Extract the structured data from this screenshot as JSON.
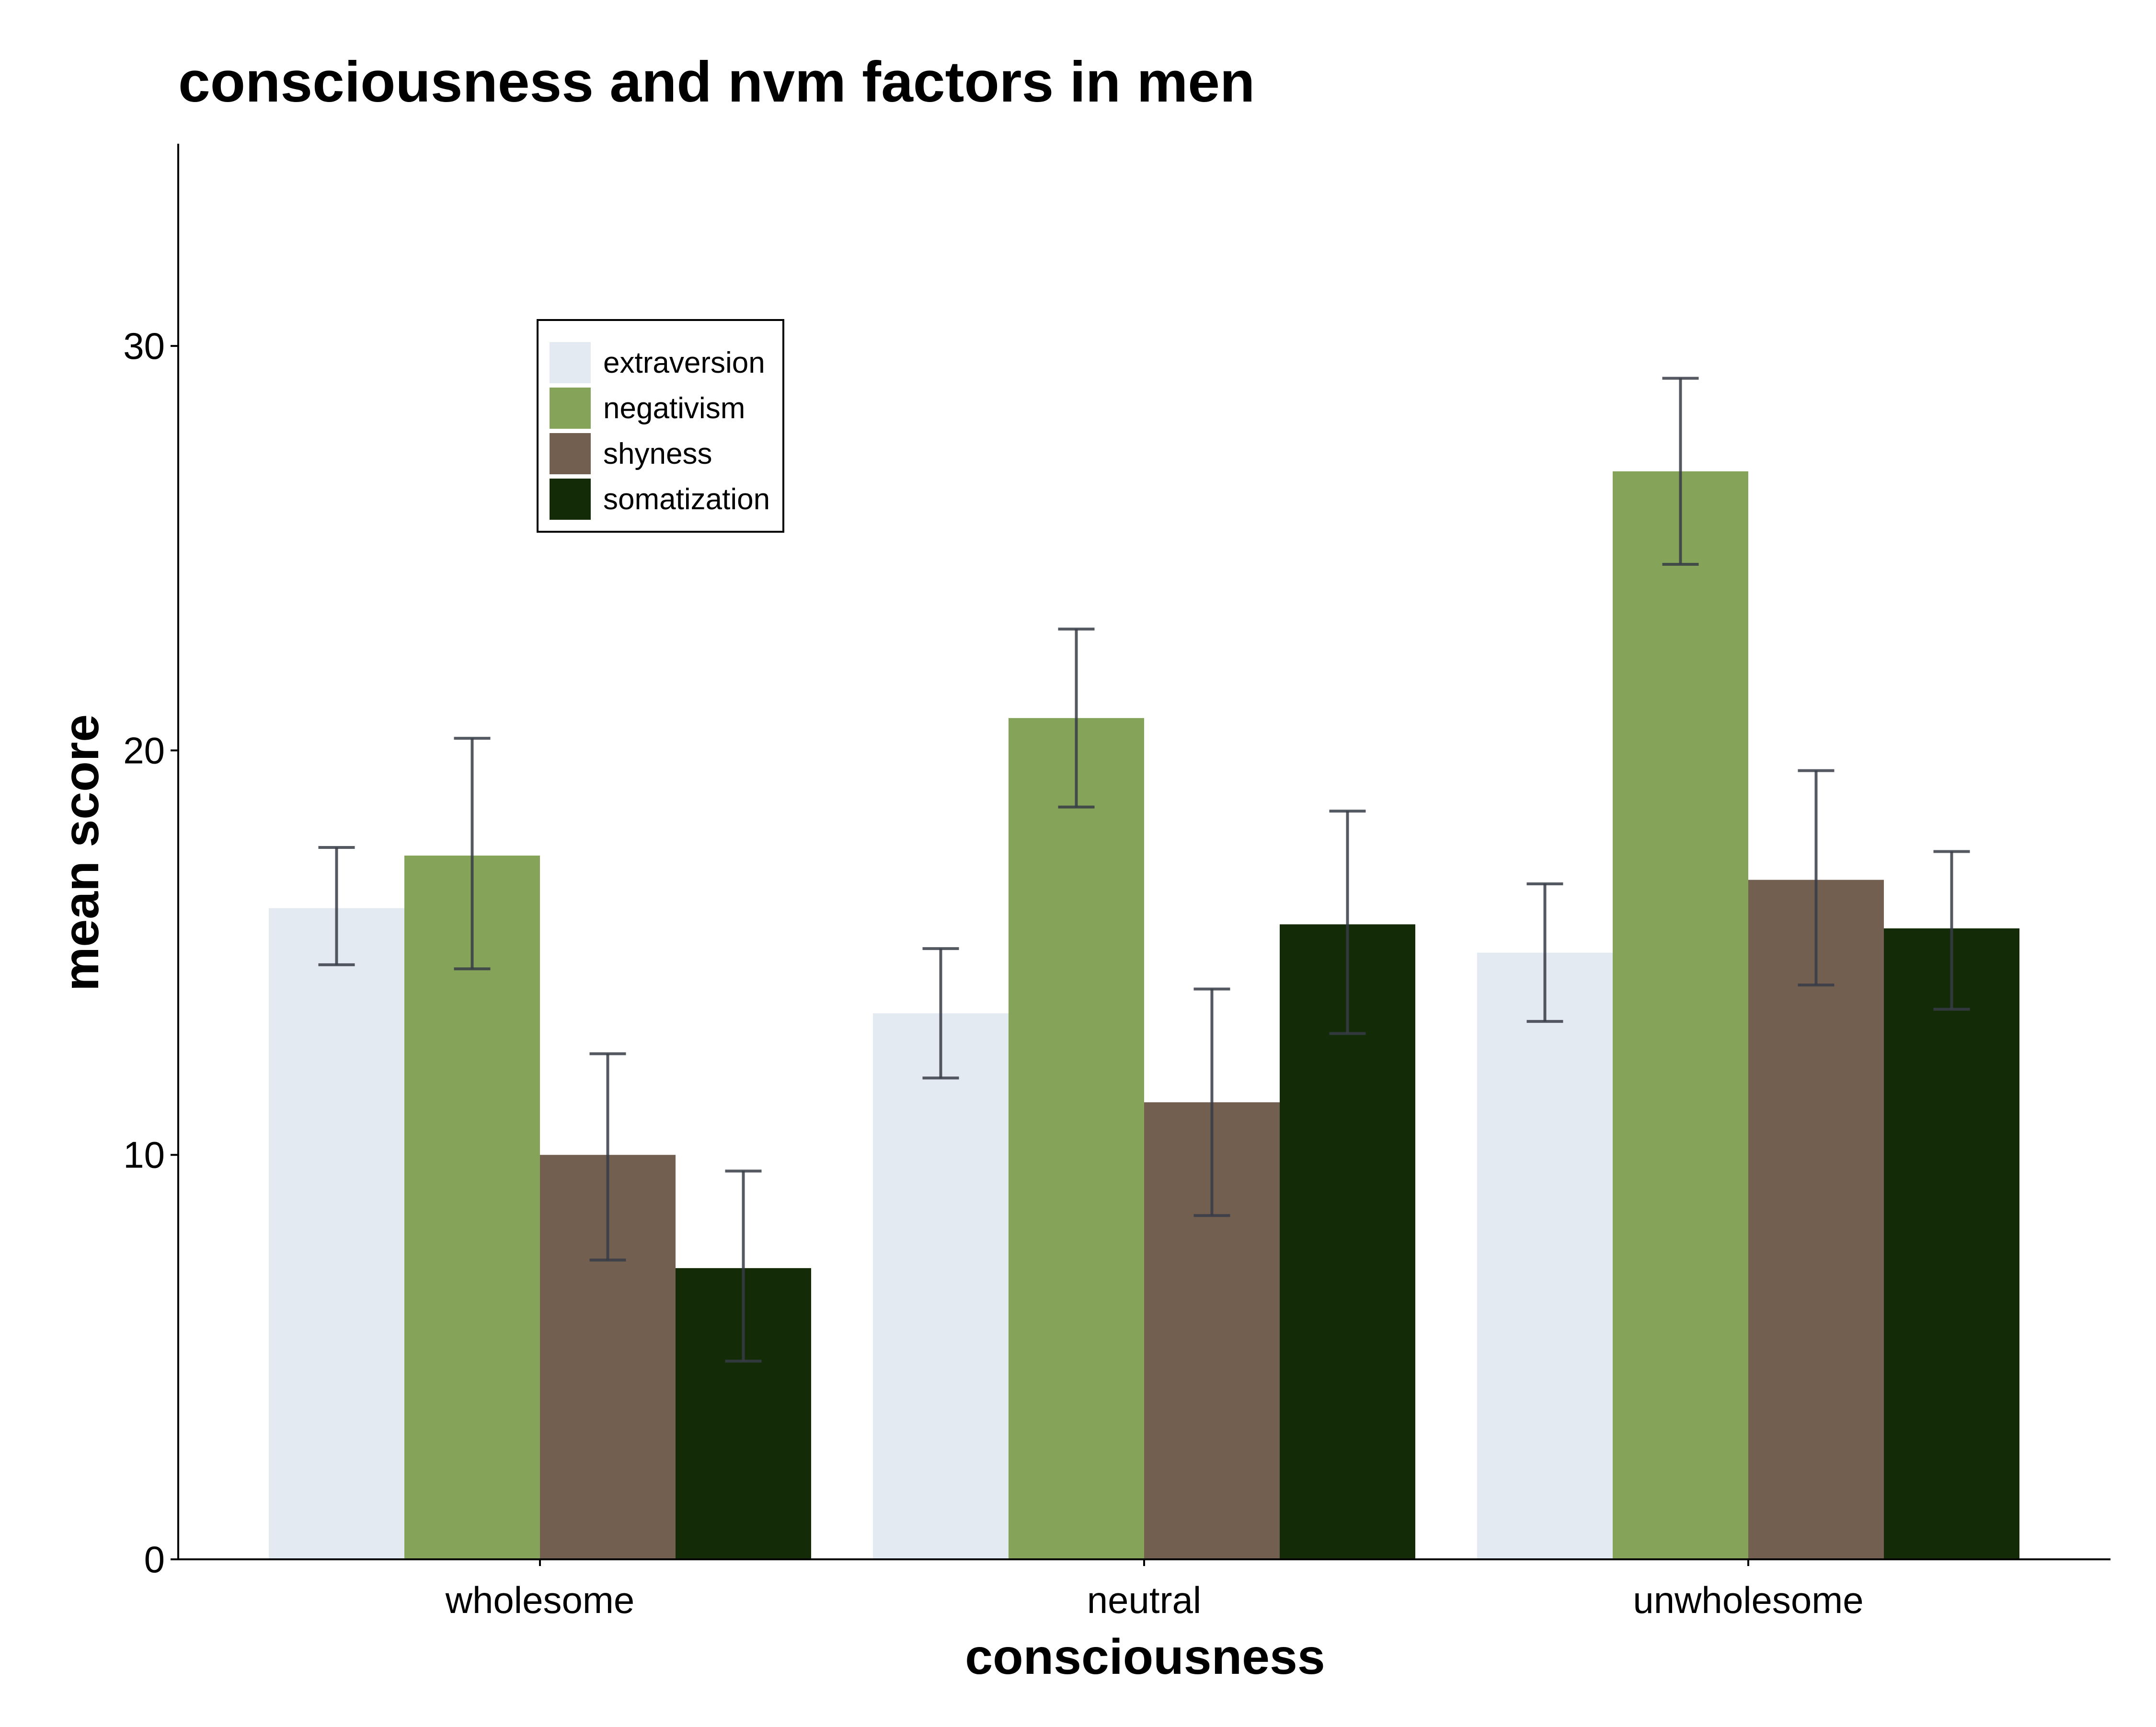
{
  "chart_data": {
    "type": "bar",
    "title": "consciousness and nvm factors in men",
    "xlabel": "consciousness",
    "ylabel": "mean score",
    "categories": [
      "wholesome",
      "neutral",
      "unwholesome"
    ],
    "ylim": [
      0,
      35
    ],
    "yticks": [
      0,
      10,
      20,
      30
    ],
    "grid": false,
    "legend_position": "top-left",
    "error_bars": true,
    "series": [
      {
        "name": "extraversion",
        "color": "#e3eaf2",
        "values": [
          16.1,
          13.5,
          15.0
        ],
        "error_low": [
          14.7,
          11.9,
          13.3
        ],
        "error_high": [
          17.6,
          15.1,
          16.7
        ]
      },
      {
        "name": "negativism",
        "color": "#85a45a",
        "values": [
          17.4,
          20.8,
          26.9
        ],
        "error_low": [
          14.6,
          18.6,
          24.6
        ],
        "error_high": [
          20.3,
          23.0,
          29.2
        ]
      },
      {
        "name": "shyness",
        "color": "#735f50",
        "values": [
          10.0,
          11.3,
          16.8
        ],
        "error_low": [
          7.4,
          8.5,
          14.2
        ],
        "error_high": [
          12.5,
          14.1,
          19.5
        ]
      },
      {
        "name": "somatization",
        "color": "#132c07",
        "values": [
          7.2,
          15.7,
          15.6
        ],
        "error_low": [
          4.9,
          13.0,
          13.6
        ],
        "error_high": [
          9.6,
          18.5,
          17.5
        ]
      }
    ],
    "colors": {
      "axis": "#000000",
      "error_bar": "#373c46"
    }
  }
}
